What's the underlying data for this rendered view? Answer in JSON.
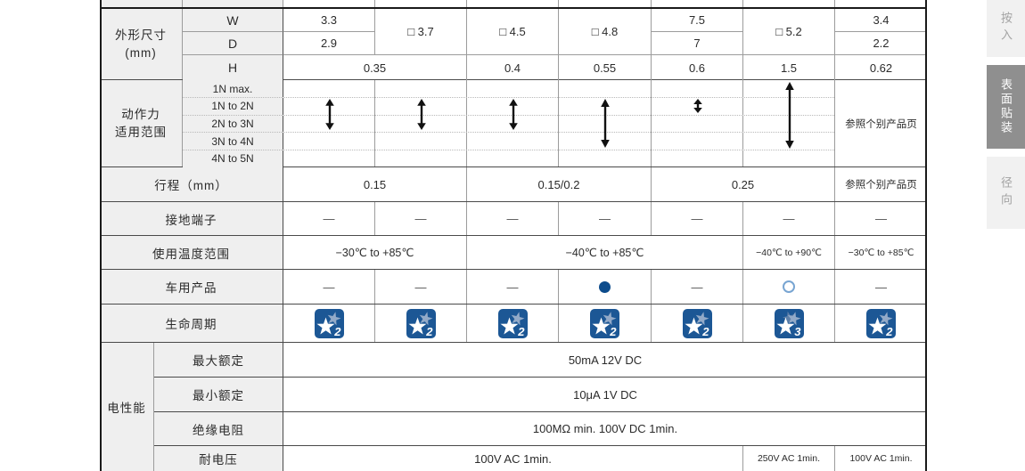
{
  "colors": {
    "accent_filled_circle": "#0d4c8c",
    "accent_open_circle": "#78a5d2",
    "lifecycle_blue": "#1c5795",
    "lifecycle_star_light": "#93aac8",
    "lifecycle_star_mid": "#5d7fa8",
    "tab_active_bg": "#8f8f8f"
  },
  "sidebar": {
    "tabs": [
      {
        "label": "按入",
        "active": false
      },
      {
        "label": "表面贴装",
        "active": true
      },
      {
        "label": "径向",
        "active": false
      }
    ]
  },
  "table": {
    "dim": {
      "label": "外形尺寸",
      "unit": "(mm)",
      "rows": {
        "w": "W",
        "d": "D",
        "h": "H"
      },
      "w": {
        "c1": "3.3",
        "c5": "7.5",
        "c7": "3.4"
      },
      "wd": {
        "c2": "□ 3.7",
        "c3": "□ 4.5",
        "c4": "□ 4.8",
        "c6": "□ 5.2"
      },
      "d": {
        "c1": "2.9",
        "c5": "7",
        "c7": "2.2"
      },
      "h": {
        "c12": "0.35",
        "c3": "0.4",
        "c4": "0.55",
        "c5": "0.6",
        "c6": "1.5",
        "c7": "0.62"
      }
    },
    "force": {
      "label1": "动作力",
      "label2": "适用范围",
      "ranges": [
        "1N max.",
        "1N to 2N",
        "2N to 3N",
        "3N to 4N",
        "4N to 5N"
      ],
      "arrows": [
        {
          "col": 0,
          "row_from": 1,
          "row_to": 2
        },
        {
          "col": 1,
          "row_from": 1,
          "row_to": 2
        },
        {
          "col": 2,
          "row_from": 1,
          "row_to": 2
        },
        {
          "col": 3,
          "row_from": 1,
          "row_to": 3
        },
        {
          "col": 4,
          "row_from": 1,
          "row_to": 1
        },
        {
          "col": 5,
          "row_from": 0,
          "row_to": 3
        }
      ],
      "note": "参照个别产品页"
    },
    "travel": {
      "label": "行程（mm）",
      "c12": "0.15",
      "c34": "0.15/0.2",
      "c56": "0.25",
      "c7": "参照个别产品页"
    },
    "ground": {
      "label": "接地端子",
      "value": "—"
    },
    "temp": {
      "label": "使用温度范围",
      "c12": "−30℃ to +85℃",
      "c345": "−40℃ to +85℃",
      "c6": "−40℃ to +90℃",
      "c7": "−30℃ to +85℃"
    },
    "auto": {
      "label": "车用产品",
      "dash": "—",
      "cells": [
        "dash",
        "dash",
        "dash",
        "filled",
        "dash",
        "open",
        "dash"
      ]
    },
    "life": {
      "label": "生命周期",
      "values": [
        2,
        2,
        2,
        2,
        2,
        3,
        2
      ]
    },
    "elec": {
      "label": "电性能",
      "rows": [
        {
          "label": "最大额定",
          "value": "50mA 12V DC"
        },
        {
          "label": "最小额定",
          "value": "10μA 1V DC"
        },
        {
          "label": "绝缘电阻",
          "value": "100MΩ min. 100V DC 1min."
        },
        {
          "label": "耐电压",
          "c15": "100V AC 1min.",
          "c6": "250V AC 1min.",
          "c7": "100V AC 1min."
        }
      ]
    }
  }
}
